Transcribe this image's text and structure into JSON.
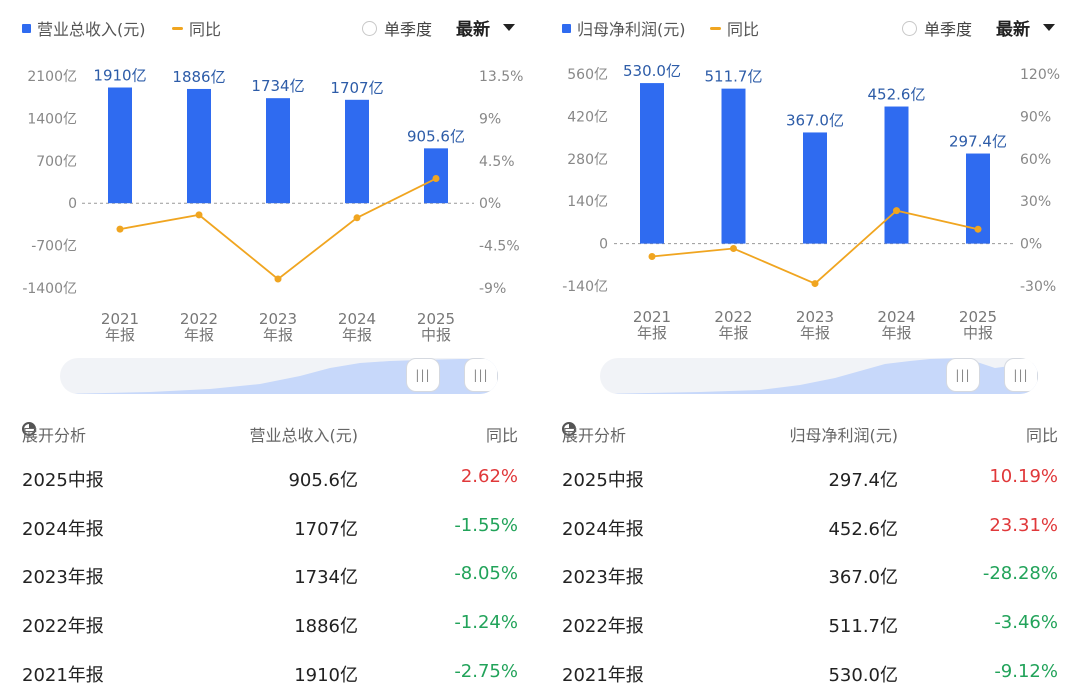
{
  "legend_toggle": "单季度",
  "dropdown": "最新",
  "left": {
    "legend_bar": "营业总收入(元)",
    "legend_line": "同比",
    "table": {
      "expand_label": "展开分析",
      "col_value": "营业总收入(元)",
      "col_yoy": "同比",
      "rows": [
        {
          "period": "2025中报",
          "value": "905.6亿",
          "yoy": "2.62%",
          "dir": "up"
        },
        {
          "period": "2024年报",
          "value": "1707亿",
          "yoy": "-1.55%",
          "dir": "down"
        },
        {
          "period": "2023年报",
          "value": "1734亿",
          "yoy": "-8.05%",
          "dir": "down"
        },
        {
          "period": "2022年报",
          "value": "1886亿",
          "yoy": "-1.24%",
          "dir": "down"
        },
        {
          "period": "2021年报",
          "value": "1910亿",
          "yoy": "-2.75%",
          "dir": "down"
        }
      ]
    }
  },
  "right": {
    "legend_bar": "归母净利润(元)",
    "legend_line": "同比",
    "table": {
      "expand_label": "展开分析",
      "col_value": "归母净利润(元)",
      "col_yoy": "同比",
      "rows": [
        {
          "period": "2025中报",
          "value": "297.4亿",
          "yoy": "10.19%",
          "dir": "up"
        },
        {
          "period": "2024年报",
          "value": "452.6亿",
          "yoy": "23.31%",
          "dir": "up"
        },
        {
          "period": "2023年报",
          "value": "367.0亿",
          "yoy": "-28.28%",
          "dir": "down"
        },
        {
          "period": "2022年报",
          "value": "511.7亿",
          "yoy": "-3.46%",
          "dir": "down"
        },
        {
          "period": "2021年报",
          "value": "530.0亿",
          "yoy": "-9.12%",
          "dir": "down"
        }
      ]
    }
  },
  "colors": {
    "bar": "#2f6bf0",
    "line": "#f0a520",
    "up": "#e0383a",
    "down": "#22a35a",
    "bar_label": "#2d5ca8"
  },
  "chart_data": [
    {
      "type": "bar",
      "categories": [
        [
          "2021",
          "年报"
        ],
        [
          "2022",
          "年报"
        ],
        [
          "2023",
          "年报"
        ],
        [
          "2024",
          "年报"
        ],
        [
          "2025",
          "中报"
        ]
      ],
      "series": [
        {
          "name": "营业总收入(元)",
          "type": "bar",
          "axis": "left",
          "values": [
            1910,
            1886,
            1734,
            1707,
            905.6
          ],
          "labels": [
            "1910亿",
            "1886亿",
            "1734亿",
            "1707亿",
            "905.6亿"
          ]
        },
        {
          "name": "同比",
          "type": "line",
          "axis": "right",
          "values": [
            -2.75,
            -1.24,
            -8.05,
            -1.55,
            2.62
          ]
        }
      ],
      "left_axis": {
        "min": -1400,
        "max": 2100,
        "ticks": [
          2100,
          1400,
          700,
          0,
          -700,
          -1400
        ],
        "tick_labels": [
          "2100亿",
          "1400亿",
          "700亿",
          "0",
          "-700亿",
          "-1400亿"
        ]
      },
      "right_axis": {
        "min": -9,
        "max": 13.5,
        "ticks": [
          13.5,
          9,
          4.5,
          0,
          -4.5,
          -9
        ],
        "tick_labels": [
          "13.5%",
          "9%",
          "4.5%",
          "0%",
          "-4.5%",
          "-9%"
        ]
      },
      "zero_line": "dashed",
      "legend": "top-left"
    },
    {
      "type": "bar",
      "categories": [
        [
          "2021",
          "年报"
        ],
        [
          "2022",
          "年报"
        ],
        [
          "2023",
          "年报"
        ],
        [
          "2024",
          "年报"
        ],
        [
          "2025",
          "中报"
        ]
      ],
      "series": [
        {
          "name": "归母净利润(元)",
          "type": "bar",
          "axis": "left",
          "values": [
            530.0,
            511.7,
            367.0,
            452.6,
            297.4
          ],
          "labels": [
            "530.0亿",
            "511.7亿",
            "367.0亿",
            "452.6亿",
            "297.4亿"
          ]
        },
        {
          "name": "同比",
          "type": "line",
          "axis": "right",
          "values": [
            -9.12,
            -3.46,
            -28.28,
            23.31,
            10.19
          ]
        }
      ],
      "left_axis": {
        "min": -140,
        "max": 560,
        "ticks": [
          560,
          420,
          280,
          140,
          0,
          -140
        ],
        "tick_labels": [
          "560亿",
          "420亿",
          "280亿",
          "140亿",
          "0",
          "-140亿"
        ]
      },
      "right_axis": {
        "min": -30,
        "max": 120,
        "ticks": [
          120,
          90,
          60,
          30,
          0,
          -30
        ],
        "tick_labels": [
          "120%",
          "90%",
          "60%",
          "30%",
          "0%",
          "-30%"
        ]
      },
      "zero_line": "dashed",
      "legend": "top-left"
    }
  ]
}
